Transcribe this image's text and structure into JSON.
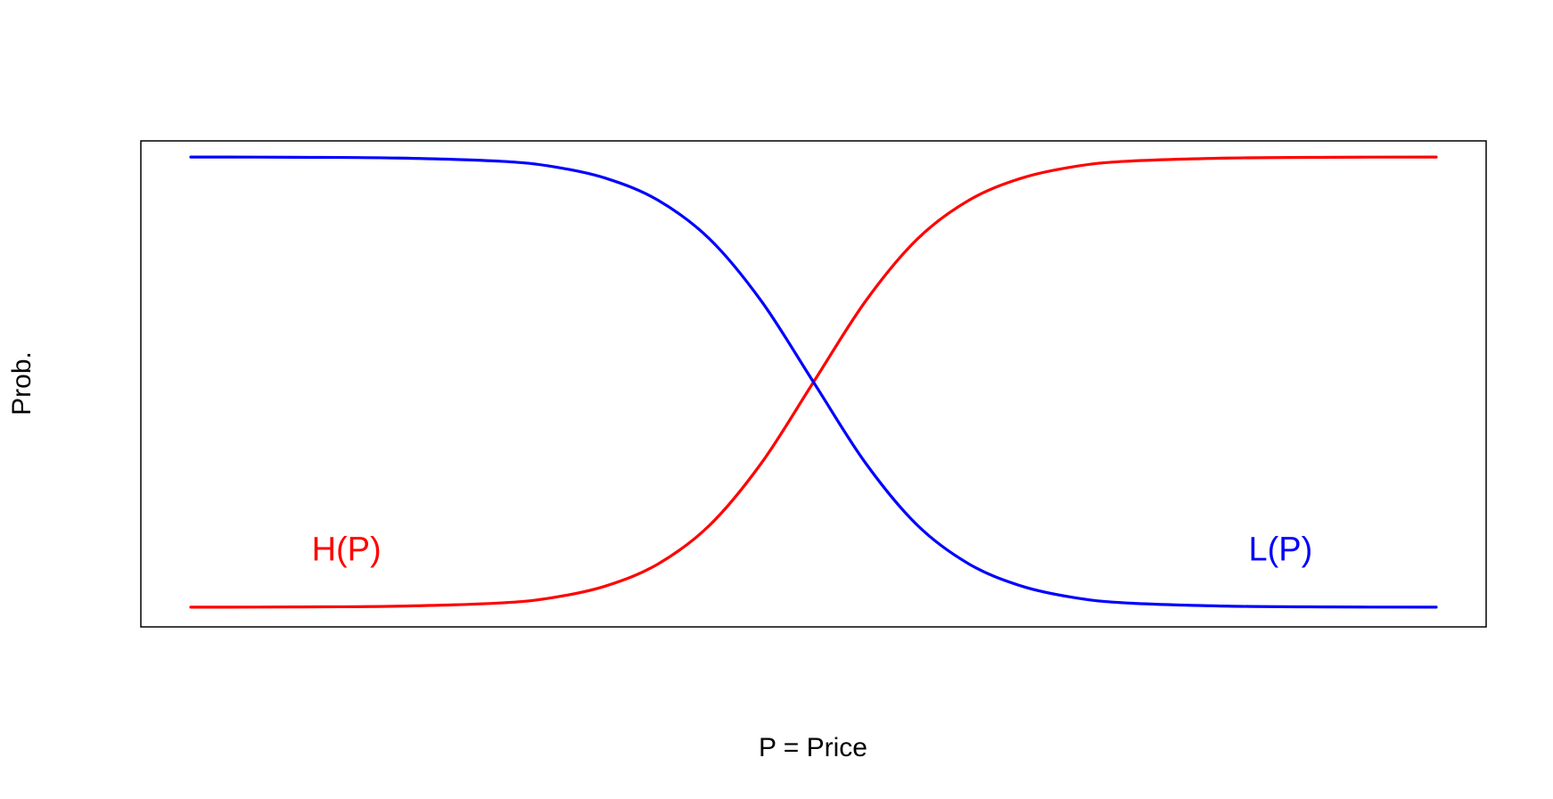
{
  "chart_data": {
    "type": "line",
    "title": "",
    "xlabel": "P = Price",
    "ylabel": "Prob.",
    "xlim": [
      -6,
      6
    ],
    "ylim": [
      0,
      1
    ],
    "grid": false,
    "axes_ticks": false,
    "series": [
      {
        "name": "H(P)",
        "color": "#ff0000",
        "x": [
          -6,
          -5,
          -4,
          -3,
          -2.5,
          -2,
          -1.5,
          -1,
          -0.5,
          0,
          0.5,
          1,
          1.5,
          2,
          2.5,
          3,
          4,
          5,
          6
        ],
        "values": [
          0.0002,
          0.0007,
          0.0025,
          0.0098,
          0.0219,
          0.0474,
          0.0959,
          0.1824,
          0.3208,
          0.5,
          0.6792,
          0.8176,
          0.9041,
          0.9526,
          0.9781,
          0.9902,
          0.9975,
          0.9993,
          0.9998
        ]
      },
      {
        "name": "L(P)",
        "color": "#0000ff",
        "x": [
          -6,
          -5,
          -4,
          -3,
          -2.5,
          -2,
          -1.5,
          -1,
          -0.5,
          0,
          0.5,
          1,
          1.5,
          2,
          2.5,
          3,
          4,
          5,
          6
        ],
        "values": [
          0.9998,
          0.9993,
          0.9975,
          0.9902,
          0.9781,
          0.9526,
          0.9041,
          0.8176,
          0.6792,
          0.5,
          0.3208,
          0.1824,
          0.0959,
          0.0474,
          0.0219,
          0.0098,
          0.0025,
          0.0007,
          0.0002
        ]
      }
    ],
    "annotations": [
      {
        "text": "H(P)",
        "color": "#ff0000",
        "x": -4.5,
        "y": 0.1
      },
      {
        "text": "L(P)",
        "color": "#0000ff",
        "x": 4.5,
        "y": 0.1
      }
    ]
  }
}
